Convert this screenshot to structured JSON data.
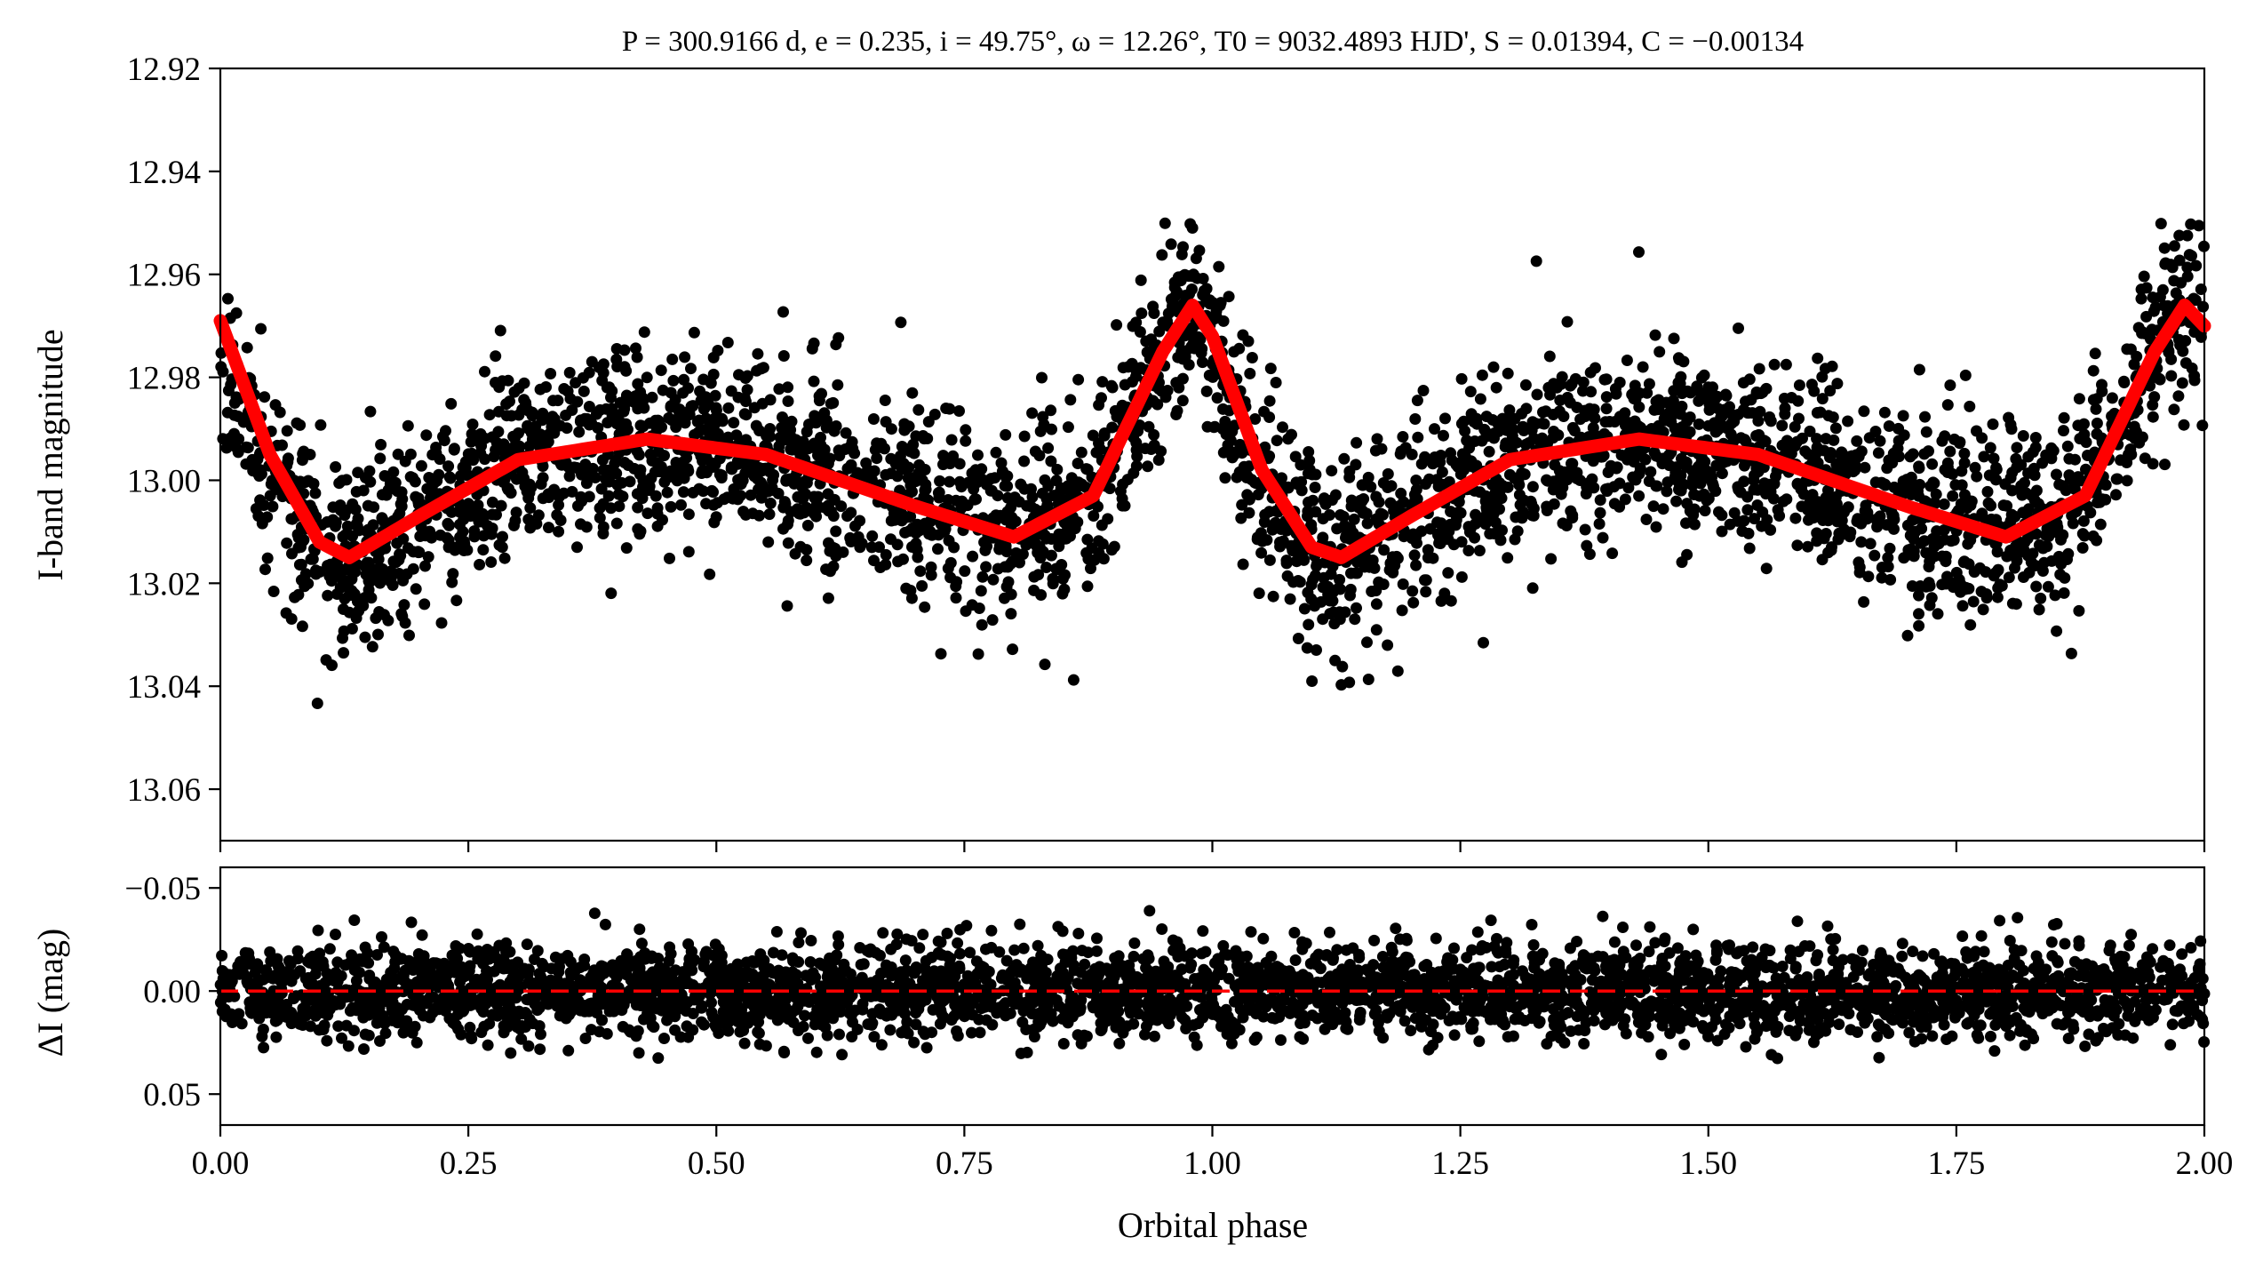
{
  "chart_data": [
    {
      "panel": "top",
      "type": "scatter",
      "title": "P = 300.9166 d, e = 0.235, i = 49.75°, ω = 12.26°, T0 = 9032.4893 HJD', S = 0.01394, C = −0.00134",
      "xlabel": "",
      "ylabel": "I-band magnitude",
      "xlim": [
        0,
        2
      ],
      "ylim": [
        13.07,
        12.92
      ],
      "y_inverted": true,
      "y_ticks": [
        12.92,
        12.94,
        12.96,
        12.98,
        13.0,
        13.02,
        13.04,
        13.06
      ],
      "y_tick_labels": [
        "12.92",
        "12.94",
        "12.96",
        "12.98",
        "13.00",
        "13.02",
        "13.04",
        "13.06"
      ],
      "grid": false,
      "series": [
        {
          "kind": "points",
          "color": "#000000",
          "trend_x": [
            0.0,
            0.05,
            0.1,
            0.13,
            0.2,
            0.3,
            0.43,
            0.55,
            0.7,
            0.8,
            0.88,
            0.95,
            0.98,
            1.0,
            1.05,
            1.1,
            1.13,
            1.2,
            1.3,
            1.43,
            1.55,
            1.7,
            1.8,
            1.88,
            1.95,
            1.98,
            2.0
          ],
          "trend_y": [
            12.975,
            13.0,
            13.013,
            13.015,
            13.007,
            12.996,
            12.992,
            12.995,
            13.005,
            13.011,
            13.003,
            12.975,
            12.966,
            12.975,
            13.0,
            13.013,
            13.015,
            13.007,
            12.996,
            12.992,
            12.995,
            13.005,
            13.011,
            13.003,
            12.975,
            12.966,
            12.971
          ],
          "scatter_sigma": 0.009
        },
        {
          "kind": "model",
          "color": "#ff0000",
          "x": [
            0.0,
            0.05,
            0.1,
            0.13,
            0.2,
            0.3,
            0.43,
            0.55,
            0.7,
            0.8,
            0.88,
            0.95,
            0.98,
            1.0,
            1.05,
            1.1,
            1.13,
            1.2,
            1.3,
            1.43,
            1.55,
            1.7,
            1.8,
            1.88,
            1.95,
            1.98,
            2.0
          ],
          "y": [
            12.969,
            12.995,
            13.012,
            13.015,
            13.007,
            12.996,
            12.992,
            12.995,
            13.005,
            13.011,
            13.003,
            12.975,
            12.966,
            12.972,
            12.998,
            13.013,
            13.015,
            13.007,
            12.996,
            12.992,
            12.995,
            13.005,
            13.011,
            13.003,
            12.975,
            12.966,
            12.97
          ]
        }
      ]
    },
    {
      "panel": "bottom",
      "type": "scatter",
      "xlabel": "Orbital phase",
      "ylabel": "ΔI (mag)",
      "xlim": [
        0,
        2
      ],
      "ylim": [
        0.065,
        -0.06
      ],
      "y_inverted": true,
      "y_ticks": [
        -0.05,
        0.0,
        0.05
      ],
      "y_tick_labels": [
        "−0.05",
        "0.00",
        "0.05"
      ],
      "x_ticks": [
        0,
        0.25,
        0.5,
        0.75,
        1.0,
        1.25,
        1.5,
        1.75,
        2.0
      ],
      "x_tick_labels": [
        "0.00",
        "0.25",
        "0.50",
        "0.75",
        "1.00",
        "1.25",
        "1.50",
        "1.75",
        "2.00"
      ],
      "grid": false,
      "series": [
        {
          "kind": "residuals",
          "color": "#000000",
          "scatter_sigma": 0.011
        },
        {
          "kind": "zero-line",
          "color": "#ff0000",
          "y": 0.0,
          "dashed": true
        }
      ]
    }
  ]
}
